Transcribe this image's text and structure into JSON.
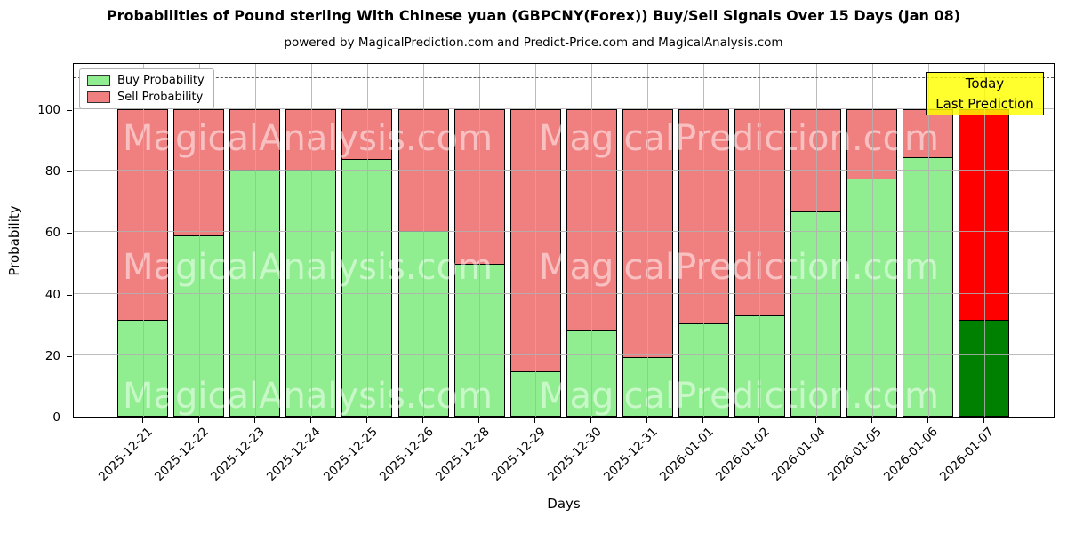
{
  "title": "Probabilities of Pound sterling With Chinese yuan (GBPCNY(Forex)) Buy/Sell Signals Over 15 Days (Jan 08)",
  "subtitle": "powered by MagicalPrediction.com and Predict-Price.com and MagicalAnalysis.com",
  "legend": {
    "items": [
      {
        "label": "Buy Probability",
        "color": "#90EE90"
      },
      {
        "label": "Sell Probability",
        "color": "#F08080"
      }
    ]
  },
  "annotation": {
    "line1": "Today",
    "line2": "Last Prediction",
    "bg_color": "#FFFF00"
  },
  "watermarks": {
    "left": "MagicalAnalysis.com",
    "right": "MagicalPrediction.com"
  },
  "chart_data": {
    "type": "bar",
    "stacked": true,
    "title": "Probabilities of Pound sterling With Chinese yuan (GBPCNY(Forex)) Buy/Sell Signals Over 15 Days (Jan 08)",
    "xlabel": "Days",
    "ylabel": "Probability",
    "ylim": [
      0,
      115.3
    ],
    "yticks": [
      0,
      20,
      40,
      60,
      80,
      100
    ],
    "dashed_line_y": 110,
    "grid": true,
    "legend_position": "upper left",
    "categories": [
      "2025-12-21",
      "2025-12-22",
      "2025-12-23",
      "2025-12-24",
      "2025-12-25",
      "2025-12-26",
      "2025-12-28",
      "2025-12-29",
      "2025-12-30",
      "2025-12-31",
      "2026-01-01",
      "2026-01-02",
      "2026-01-04",
      "2026-01-05",
      "2026-01-06",
      "2026-01-07"
    ],
    "series": [
      {
        "name": "Buy Probability",
        "color": "#90EE90",
        "values": [
          31.4,
          58.9,
          80.4,
          80.4,
          83.9,
          60.5,
          49.6,
          14.7,
          28.0,
          19.3,
          30.3,
          33.0,
          66.8,
          77.5,
          84.3,
          31.4
        ]
      },
      {
        "name": "Sell Probability",
        "color": "#F08080",
        "values": [
          68.6,
          41.1,
          19.6,
          19.6,
          16.1,
          39.5,
          50.4,
          85.3,
          72.0,
          80.7,
          69.7,
          67.0,
          33.2,
          22.5,
          15.7,
          68.6
        ]
      }
    ],
    "today_index": 15,
    "today_colors": {
      "buy": "#008000",
      "sell": "#FF0000"
    }
  }
}
